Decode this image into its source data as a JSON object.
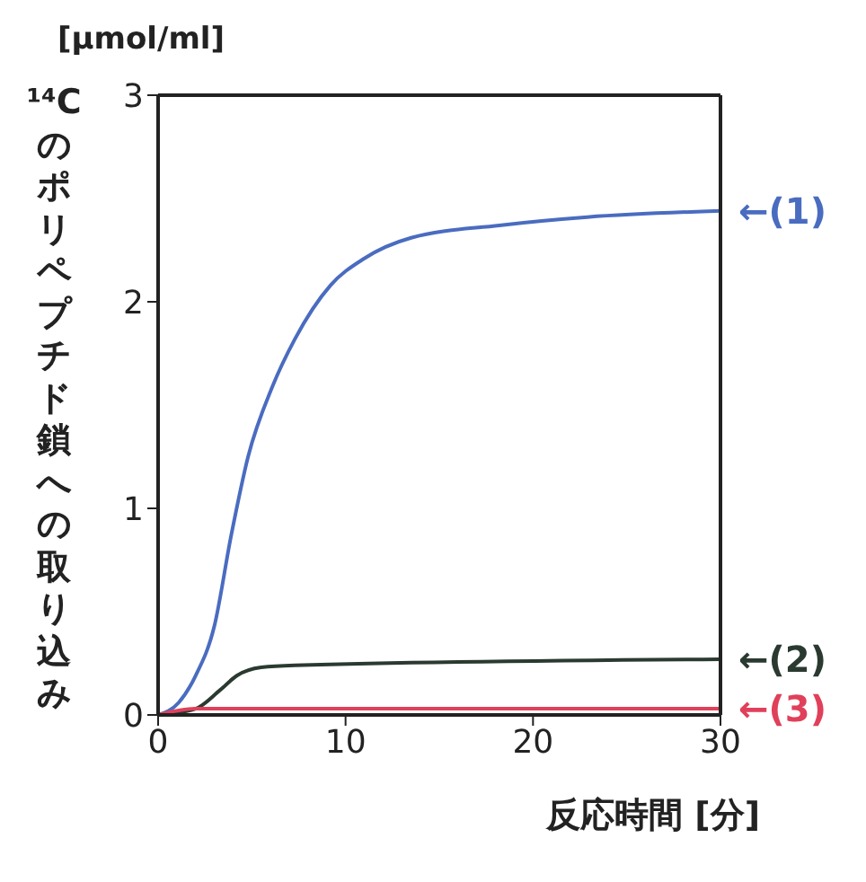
{
  "chart_data": {
    "type": "line",
    "xlabel": "反応時間 [分]",
    "ylabel": "¹⁴Cのポリペプチド鎖への取り込み",
    "annotations": [
      "[μmol/ml]"
    ],
    "xlim": [
      0,
      30
    ],
    "xticks": [
      0,
      10,
      20,
      30
    ],
    "ylim": [
      0,
      3
    ],
    "yticks": [
      0,
      1,
      2,
      3
    ],
    "series": [
      {
        "name": "←(1)",
        "color": "#4a6cc0",
        "x": [
          0,
          1.1,
          2,
          3,
          3.9,
          4.8,
          6.1,
          7.3,
          9.2,
          11,
          13.5,
          18.2,
          22.9,
          30
        ],
        "values": [
          0,
          0.06,
          0.19,
          0.43,
          0.87,
          1.25,
          1.59,
          1.82,
          2.08,
          2.21,
          2.31,
          2.37,
          2.41,
          2.44
        ]
      },
      {
        "name": "←(2)",
        "color": "#2a3a30",
        "x": [
          0,
          2,
          3.3,
          4.2,
          5.5,
          7.3,
          30
        ],
        "values": [
          0,
          0.03,
          0.12,
          0.19,
          0.23,
          0.24,
          0.27
        ]
      },
      {
        "name": "←(3)",
        "color": "#e0405a",
        "x": [
          0,
          2,
          30
        ],
        "values": [
          0,
          0.03,
          0.03
        ]
      }
    ]
  }
}
